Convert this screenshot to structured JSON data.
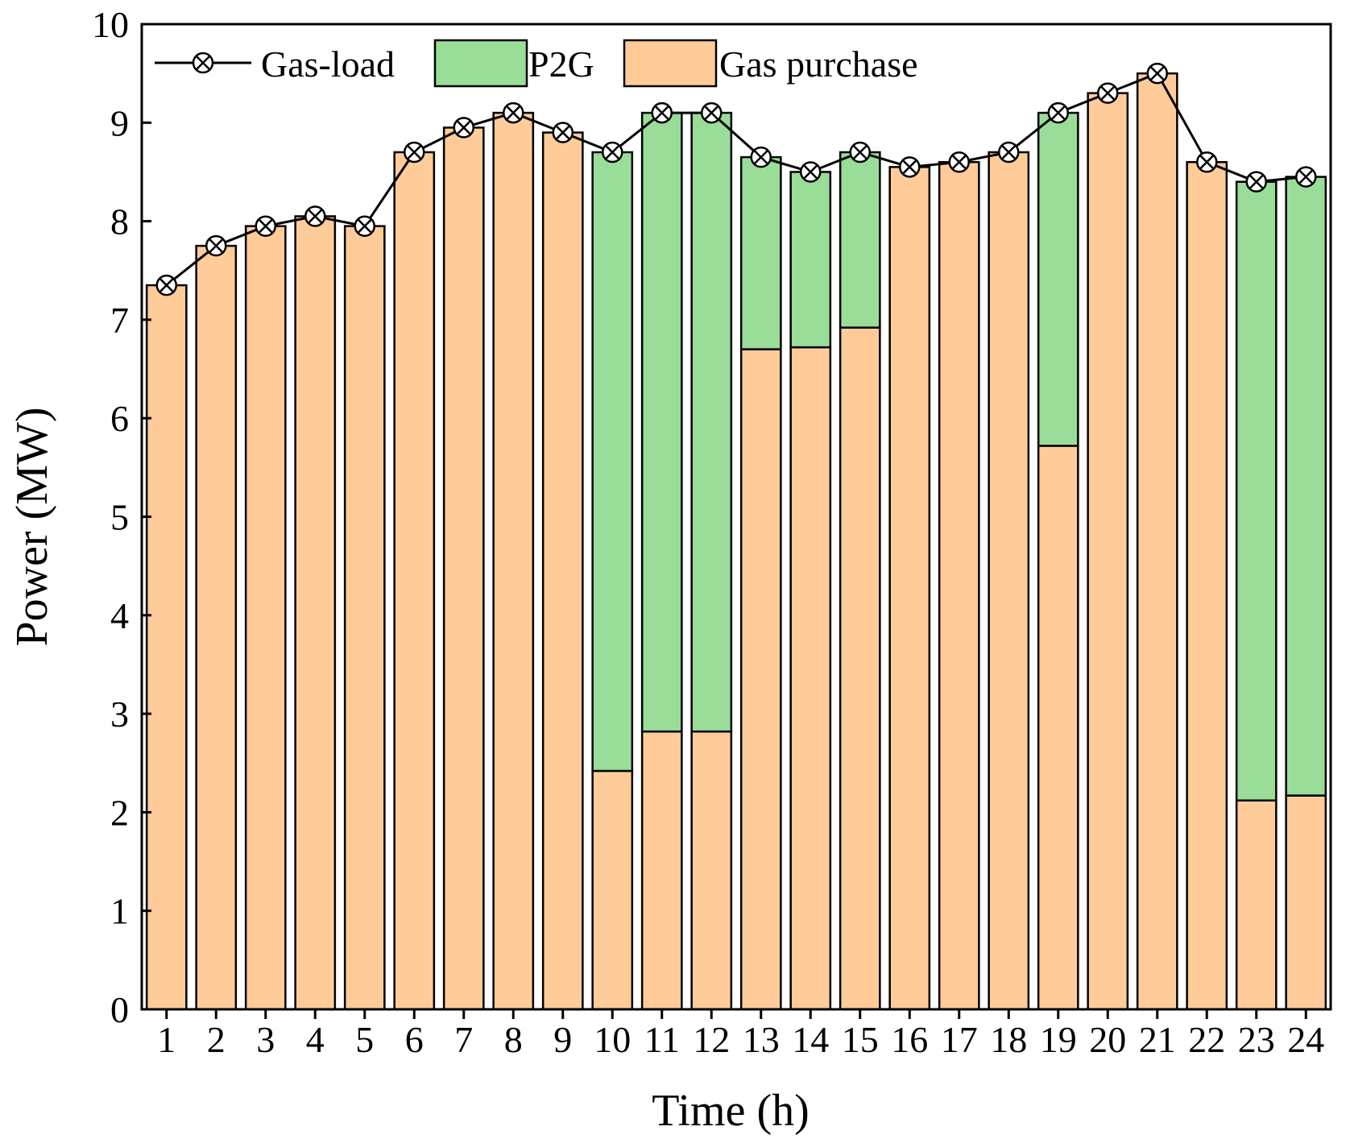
{
  "chart_data": {
    "type": "bar",
    "stacked": true,
    "title": "",
    "xlabel": "Time (h)",
    "ylabel": "Power (MW)",
    "ylim": [
      0,
      10
    ],
    "yticks": [
      "0",
      "1",
      "2",
      "3",
      "4",
      "5",
      "6",
      "7",
      "8",
      "9",
      "10"
    ],
    "categories": [
      "1",
      "2",
      "3",
      "4",
      "5",
      "6",
      "7",
      "8",
      "9",
      "10",
      "11",
      "12",
      "13",
      "14",
      "15",
      "16",
      "17",
      "18",
      "19",
      "20",
      "21",
      "22",
      "23",
      "24"
    ],
    "series": [
      {
        "name": "Gas purchase",
        "kind": "bar",
        "color": "#FFCC99",
        "values": [
          7.35,
          7.75,
          7.95,
          8.05,
          7.95,
          8.7,
          8.95,
          9.1,
          8.9,
          2.42,
          2.82,
          2.82,
          6.7,
          6.72,
          6.92,
          8.55,
          8.6,
          8.7,
          5.72,
          9.3,
          9.5,
          8.6,
          2.12,
          2.17
        ]
      },
      {
        "name": "P2G",
        "kind": "bar",
        "color": "#99DD99",
        "values": [
          0,
          0,
          0,
          0,
          0,
          0,
          0,
          0,
          0,
          6.28,
          6.28,
          6.28,
          1.95,
          1.78,
          1.78,
          0,
          0,
          0,
          3.38,
          0,
          0,
          0,
          6.28,
          6.28
        ]
      },
      {
        "name": "Gas-load",
        "kind": "line",
        "color": "#000000",
        "values": [
          7.35,
          7.75,
          7.95,
          8.05,
          7.95,
          8.7,
          8.95,
          9.1,
          8.9,
          8.7,
          9.1,
          9.1,
          8.65,
          8.5,
          8.7,
          8.55,
          8.6,
          8.7,
          9.1,
          9.3,
          9.5,
          8.6,
          8.4,
          8.45
        ]
      }
    ],
    "legend": {
      "position": "top-left",
      "entries": [
        "Gas-load",
        "P2G",
        "Gas purchase"
      ]
    }
  }
}
